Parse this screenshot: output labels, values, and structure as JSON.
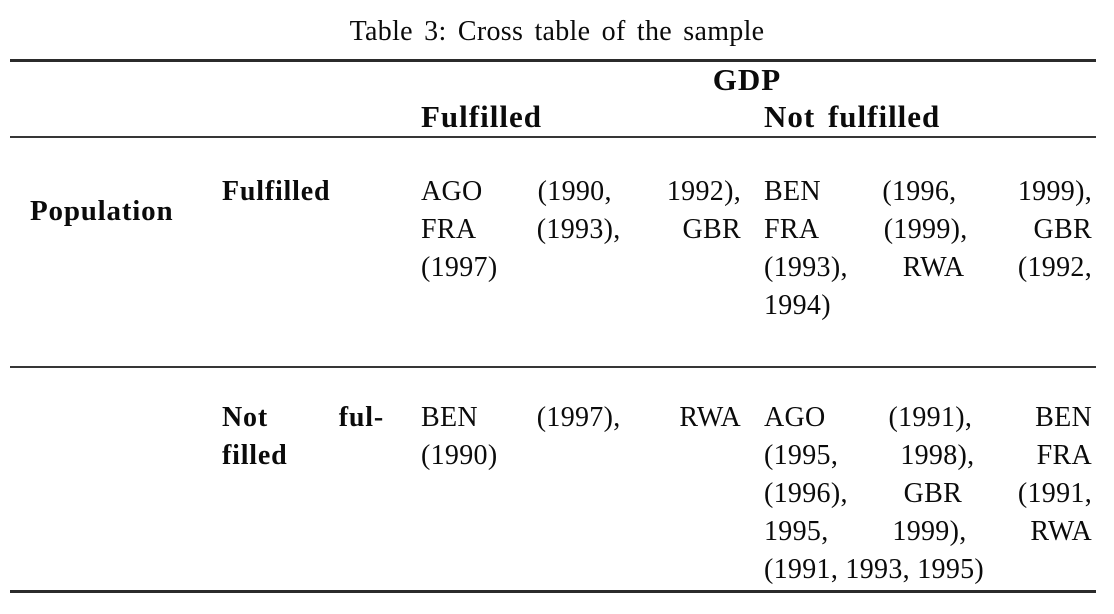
{
  "caption": "Table 3: Cross table of the sample",
  "table": {
    "column_group_header": "GDP",
    "row_group_header": "Population",
    "column_headers": [
      "Fulfilled",
      "Not fulfilled"
    ],
    "rows": [
      {
        "row_header": "Fulfilled",
        "row_header_lines": [
          "Fulfilled"
        ],
        "gdp_fulfilled": "AGO (1990, 1992), FRA (1993), GBR (1997)",
        "gdp_fulfilled_lines": [
          "AGO (1990, 1992),",
          "FRA (1993), GBR",
          "(1997)"
        ],
        "gdp_not_fulfilled": "BEN (1996, 1999), FRA (1999), GBR (1993), RWA (1992, 1994)",
        "gdp_not_fulfilled_lines": [
          "BEN (1996, 1999),",
          "FRA (1999), GBR",
          "(1993), RWA (1992,",
          "1994)"
        ]
      },
      {
        "row_header": "Not fulfilled",
        "row_header_lines": [
          "Not ful-",
          "filled"
        ],
        "gdp_fulfilled": "BEN (1997), RWA (1990)",
        "gdp_fulfilled_lines": [
          "BEN (1997), RWA",
          "(1990)"
        ],
        "gdp_not_fulfilled": "AGO (1991), BEN (1995, 1998), FRA (1996), GBR (1991, 1995, 1999), RWA (1991, 1993, 1995)",
        "gdp_not_fulfilled_lines": [
          "AGO (1991), BEN",
          "(1995, 1998), FRA",
          "(1996), GBR (1991,",
          "1995, 1999), RWA",
          "(1991, 1993, 1995)"
        ]
      }
    ]
  },
  "colors": {
    "background": "#ffffff",
    "text": "#0b0b0b",
    "rule_heavy": "#2b2b2b",
    "rule_light": "#363636"
  }
}
